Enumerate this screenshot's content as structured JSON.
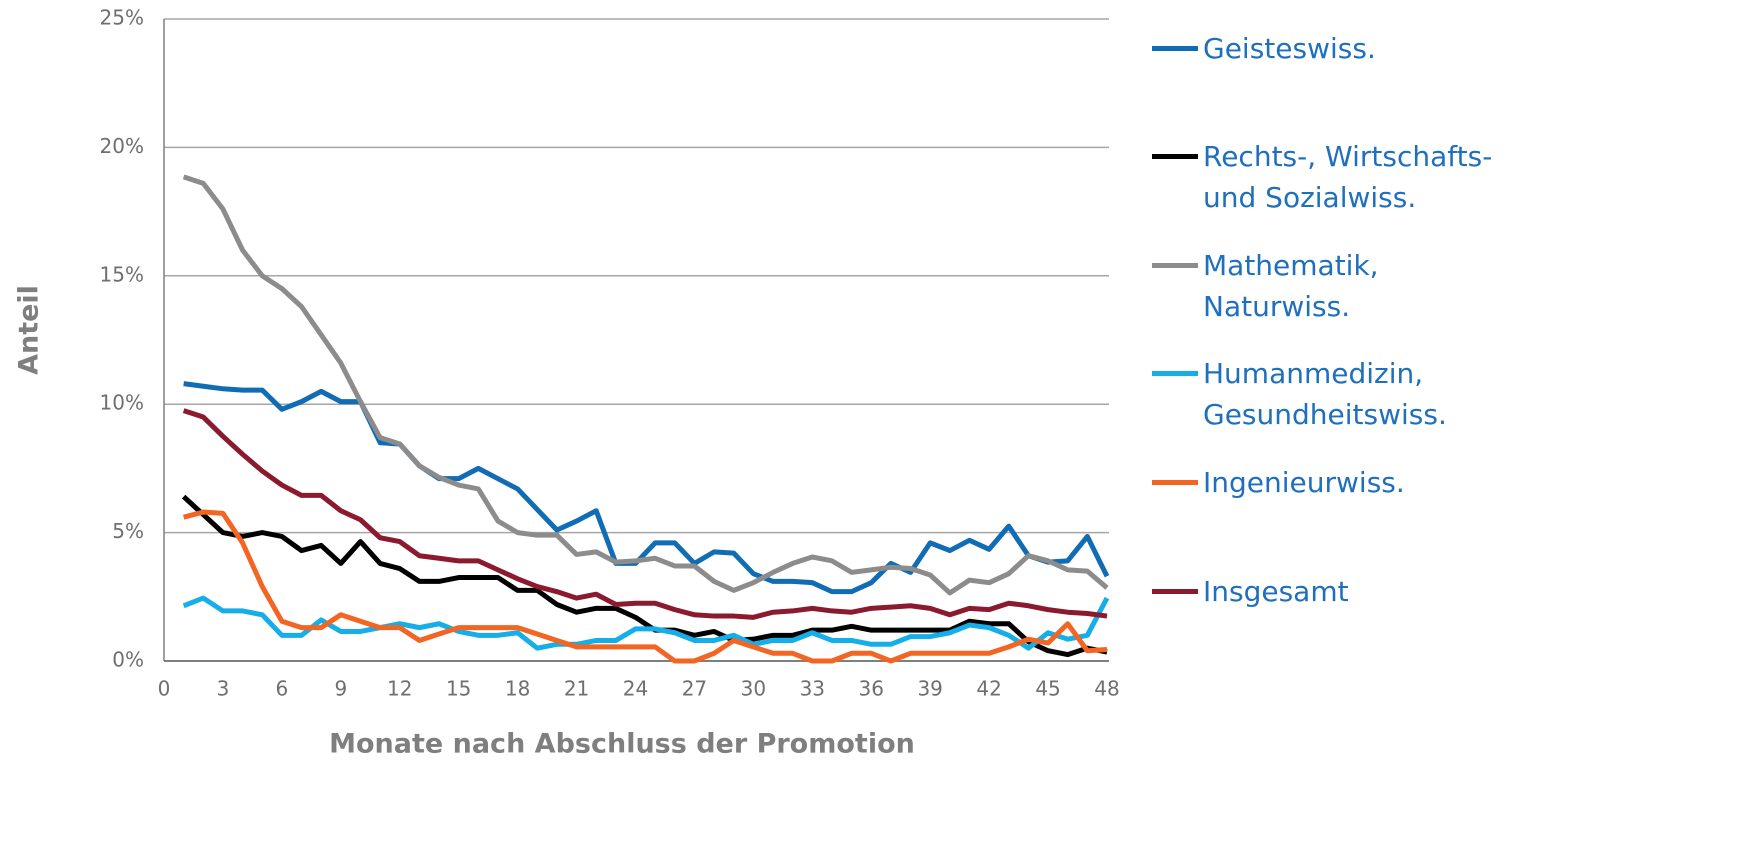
{
  "chart_data": {
    "type": "line",
    "x_label": "Monate nach Abschluss der Promotion",
    "y_label": "Anteil",
    "x": [
      1,
      2,
      3,
      4,
      5,
      6,
      7,
      8,
      9,
      10,
      11,
      12,
      13,
      14,
      15,
      16,
      17,
      18,
      19,
      20,
      21,
      22,
      23,
      24,
      25,
      26,
      27,
      28,
      29,
      30,
      31,
      32,
      33,
      34,
      35,
      36,
      37,
      38,
      39,
      40,
      41,
      42,
      43,
      44,
      45,
      46,
      47,
      48
    ],
    "xlim": [
      0,
      48
    ],
    "xticks": [
      0,
      3,
      6,
      9,
      12,
      15,
      18,
      21,
      24,
      27,
      30,
      33,
      36,
      39,
      42,
      45,
      48
    ],
    "ylim": [
      0,
      25
    ],
    "yticks": [
      {
        "value": 0,
        "label": "0%"
      },
      {
        "value": 5,
        "label": "5%"
      },
      {
        "value": 10,
        "label": "10%"
      },
      {
        "value": 15,
        "label": "15%"
      },
      {
        "value": 20,
        "label": "20%"
      },
      {
        "value": 25,
        "label": "25%"
      }
    ],
    "grid": true,
    "legend": "right",
    "series": [
      {
        "name": "Geisteswiss.",
        "color": "#0f6cb5",
        "values": [
          10.8,
          10.7,
          10.6,
          10.55,
          10.55,
          9.8,
          10.1,
          10.5,
          10.1,
          10.1,
          8.5,
          8.45,
          7.6,
          7.1,
          7.1,
          7.5,
          7.1,
          6.7,
          5.9,
          5.1,
          5.45,
          5.85,
          3.8,
          3.8,
          4.6,
          4.6,
          3.8,
          4.25,
          4.2,
          3.4,
          3.1,
          3.1,
          3.05,
          2.7,
          2.7,
          3.05,
          3.8,
          3.45,
          4.6,
          4.3,
          4.7,
          4.35,
          5.25,
          4.1,
          3.85,
          3.9,
          4.85,
          3.3
        ]
      },
      {
        "name": "Rechts-, Wirtschafts- und Sozialwiss.",
        "color": "#000000",
        "values": [
          6.4,
          5.7,
          5.0,
          4.85,
          5.0,
          4.85,
          4.3,
          4.5,
          3.8,
          4.65,
          3.8,
          3.6,
          3.1,
          3.1,
          3.25,
          3.25,
          3.25,
          2.75,
          2.75,
          2.2,
          1.9,
          2.05,
          2.05,
          1.7,
          1.2,
          1.2,
          1.0,
          1.15,
          0.8,
          0.85,
          1.0,
          1.0,
          1.2,
          1.2,
          1.35,
          1.2,
          1.2,
          1.2,
          1.2,
          1.2,
          1.55,
          1.45,
          1.45,
          0.75,
          0.4,
          0.25,
          0.5,
          0.35
        ]
      },
      {
        "name": "Mathematik, Naturwiss.",
        "color": "#8c8c8c",
        "values": [
          18.85,
          18.6,
          17.6,
          16.0,
          15.0,
          14.5,
          13.8,
          12.7,
          11.6,
          10.1,
          8.7,
          8.45,
          7.6,
          7.15,
          6.85,
          6.7,
          5.45,
          5.0,
          4.9,
          4.9,
          4.15,
          4.25,
          3.85,
          3.9,
          4.0,
          3.7,
          3.7,
          3.1,
          2.75,
          3.05,
          3.45,
          3.8,
          4.05,
          3.9,
          3.45,
          3.55,
          3.65,
          3.6,
          3.35,
          2.65,
          3.15,
          3.05,
          3.4,
          4.1,
          3.9,
          3.55,
          3.5,
          2.85
        ]
      },
      {
        "name": "Humanmedizin, Gesundheitswiss.",
        "color": "#16aee8",
        "values": [
          2.15,
          2.45,
          1.95,
          1.95,
          1.8,
          1.0,
          1.0,
          1.6,
          1.15,
          1.15,
          1.3,
          1.45,
          1.3,
          1.45,
          1.15,
          1.0,
          1.0,
          1.1,
          0.5,
          0.65,
          0.65,
          0.8,
          0.8,
          1.25,
          1.25,
          1.1,
          0.8,
          0.8,
          1.0,
          0.65,
          0.8,
          0.8,
          1.1,
          0.8,
          0.8,
          0.65,
          0.65,
          0.95,
          0.95,
          1.1,
          1.4,
          1.3,
          1.0,
          0.5,
          1.1,
          0.85,
          1.0,
          2.45
        ]
      },
      {
        "name": "Ingenieurwiss.",
        "color": "#f26522",
        "values": [
          5.6,
          5.8,
          5.75,
          4.6,
          2.9,
          1.55,
          1.3,
          1.3,
          1.8,
          1.55,
          1.3,
          1.3,
          0.8,
          1.05,
          1.3,
          1.3,
          1.3,
          1.3,
          1.05,
          0.8,
          0.55,
          0.55,
          0.55,
          0.55,
          0.55,
          0,
          0,
          0.3,
          0.8,
          0.55,
          0.3,
          0.3,
          0,
          0,
          0.3,
          0.3,
          0,
          0.3,
          0.3,
          0.3,
          0.3,
          0.3,
          0.55,
          0.85,
          0.7,
          1.45,
          0.4,
          0.45
        ]
      },
      {
        "name": "Insgesamt",
        "color": "#8b1a2e",
        "values": [
          9.75,
          9.5,
          8.75,
          8.05,
          7.4,
          6.85,
          6.45,
          6.45,
          5.85,
          5.5,
          4.8,
          4.65,
          4.1,
          4.0,
          3.9,
          3.9,
          3.55,
          3.2,
          2.9,
          2.7,
          2.45,
          2.6,
          2.2,
          2.25,
          2.25,
          2.0,
          1.8,
          1.75,
          1.75,
          1.7,
          1.9,
          1.95,
          2.05,
          1.95,
          1.9,
          2.05,
          2.1,
          2.15,
          2.05,
          1.8,
          2.05,
          2.0,
          2.25,
          2.15,
          2.0,
          1.9,
          1.85,
          1.75
        ]
      }
    ]
  }
}
